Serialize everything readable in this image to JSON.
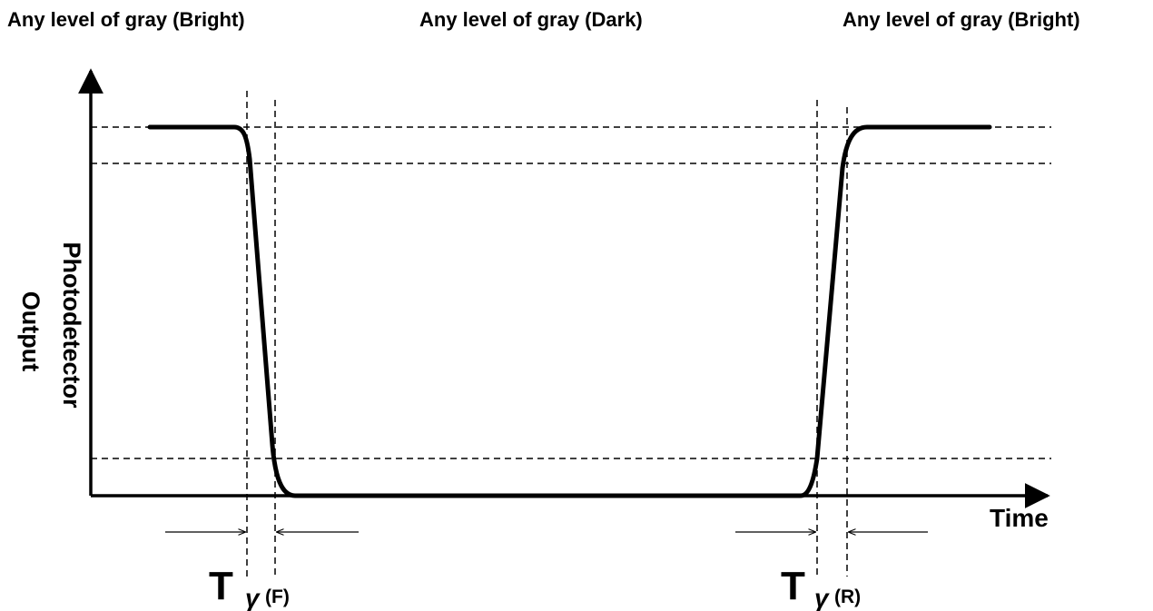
{
  "region_labels": {
    "left": "Any level of gray (Bright)",
    "middle": "Any level of gray (Dark)",
    "right": "Any level of gray (Bright)"
  },
  "axes": {
    "y_label_line1": "Photodetector",
    "y_label_line2": "Output",
    "x_label": "Time"
  },
  "markers": {
    "fall": {
      "main": "T",
      "symbol": "γ",
      "suffix": "(F)"
    },
    "rise": {
      "main": "T",
      "symbol": "γ",
      "suffix": "(R)"
    }
  },
  "colors": {
    "line": "#000000",
    "background": "#ffffff"
  }
}
